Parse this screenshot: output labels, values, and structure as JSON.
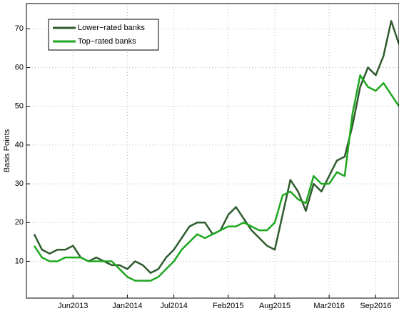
{
  "chart_data": {
    "type": "line",
    "ylabel": "Basis Points",
    "x": [
      "2013-01",
      "2013-02",
      "2013-03",
      "2013-04",
      "2013-05",
      "2013-06",
      "2013-07",
      "2013-08",
      "2013-09",
      "2013-10",
      "2013-11",
      "2013-12",
      "2014-01",
      "2014-02",
      "2014-03",
      "2014-04",
      "2014-05",
      "2014-06",
      "2014-07",
      "2014-08",
      "2014-09",
      "2014-10",
      "2014-11",
      "2014-12",
      "2015-01",
      "2015-02",
      "2015-03",
      "2015-04",
      "2015-05",
      "2015-06",
      "2015-07",
      "2015-08",
      "2015-09",
      "2015-10",
      "2015-11",
      "2015-12",
      "2016-01",
      "2016-02",
      "2016-03",
      "2016-04",
      "2016-05",
      "2016-06",
      "2016-07",
      "2016-08",
      "2016-09",
      "2016-10",
      "2016-11",
      "2016-12"
    ],
    "series": [
      {
        "name": "Lower−rated banks",
        "color": "#2f5b2f",
        "values": [
          17,
          13,
          12,
          13,
          13,
          14,
          11,
          10,
          11,
          10,
          9,
          9,
          8,
          10,
          9,
          7,
          8,
          11,
          13,
          16,
          19,
          20,
          20,
          17,
          18,
          22,
          24,
          21,
          18,
          16,
          14,
          13,
          22,
          31,
          28,
          23,
          30,
          28,
          32,
          36,
          37,
          45,
          55,
          60,
          58,
          63,
          72,
          66
        ]
      },
      {
        "name": "Top−rated banks",
        "color": "#1ea71e",
        "values": [
          14,
          11,
          10,
          10,
          11,
          11,
          11,
          10,
          10,
          10,
          10,
          8,
          6,
          5,
          5,
          5,
          6,
          8,
          10,
          13,
          15,
          17,
          16,
          17,
          18,
          19,
          19,
          20,
          19,
          18,
          18,
          20,
          27,
          28,
          26,
          25,
          32,
          30,
          30,
          33,
          32,
          48,
          58,
          55,
          54,
          56,
          53,
          50
        ]
      }
    ],
    "xlim": [
      "2012-12",
      "2016-12"
    ],
    "xticks": [
      {
        "value": "2013-06",
        "label": "Jun2013"
      },
      {
        "value": "2014-01",
        "label": "Jan2014"
      },
      {
        "value": "2014-07",
        "label": "Jul2014"
      },
      {
        "value": "2015-02",
        "label": "Feb2015"
      },
      {
        "value": "2015-08",
        "label": "Aug2015"
      },
      {
        "value": "2016-03",
        "label": "Mar2016"
      },
      {
        "value": "2016-09",
        "label": "Sep2016"
      }
    ],
    "ylim": [
      0.5,
      76.5
    ],
    "yticks": [
      10,
      20,
      30,
      40,
      50,
      60,
      70
    ],
    "grid": true,
    "legend": "northwest"
  }
}
